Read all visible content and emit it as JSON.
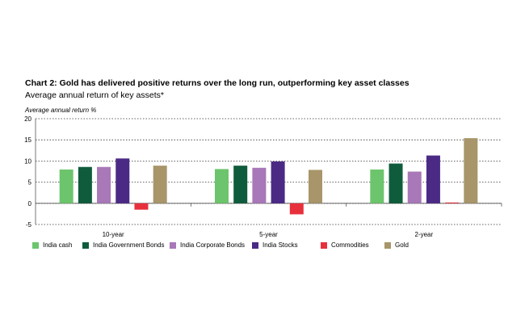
{
  "chart_data": {
    "type": "bar",
    "title": "Chart 2: Gold has delivered positive returns over the long run, outperforming key asset classes",
    "subtitle": "Average annual return of key assets*",
    "ylabel": "Average annual return %",
    "xlabel": "",
    "ylim": [
      -5,
      20
    ],
    "yticks": [
      20,
      15,
      10,
      5,
      0,
      -5
    ],
    "ytick_labels": [
      "20",
      "15",
      "10",
      "5",
      "0",
      "-5"
    ],
    "grid": "horizontal dotted",
    "legend_position": "bottom",
    "categories": [
      "10-year",
      "5-year",
      "2-year"
    ],
    "series": [
      {
        "name": "India cash",
        "color": "#6cc56c",
        "values": [
          8.0,
          8.1,
          8.0
        ]
      },
      {
        "name": "India Government Bonds",
        "color": "#0f5c3c",
        "values": [
          8.6,
          8.9,
          9.4
        ]
      },
      {
        "name": "India Corporate Bonds",
        "color": "#a878b8",
        "values": [
          8.6,
          8.4,
          7.5
        ]
      },
      {
        "name": "India Stocks",
        "color": "#4b2a86",
        "values": [
          10.6,
          9.9,
          11.3
        ]
      },
      {
        "name": "Commodities",
        "color": "#e8303c",
        "values": [
          -1.5,
          -2.6,
          0.2
        ]
      },
      {
        "name": "Gold",
        "color": "#a8956a",
        "values": [
          8.9,
          7.9,
          15.4
        ]
      }
    ]
  }
}
